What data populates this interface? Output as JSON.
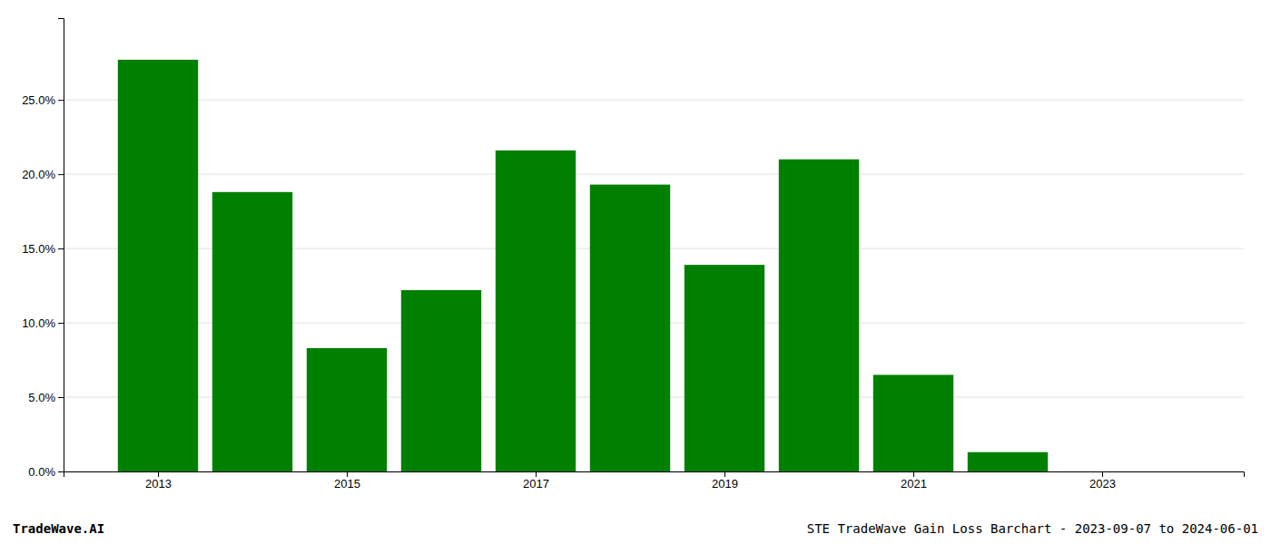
{
  "chart_data": {
    "type": "bar",
    "x": [
      2013,
      2014,
      2015,
      2016,
      2017,
      2018,
      2019,
      2020,
      2021,
      2022
    ],
    "values": [
      0.277,
      0.188,
      0.083,
      0.122,
      0.216,
      0.193,
      0.139,
      0.21,
      0.065,
      0.013
    ],
    "color": "#008000",
    "xlim": [
      2012.0,
      2024.5
    ],
    "xticks": [
      2013,
      2015,
      2017,
      2019,
      2021,
      2023
    ],
    "ylim": [
      0,
      0.305
    ],
    "yticks": [
      {
        "value": 0.0,
        "label": "0.0%"
      },
      {
        "value": 0.05,
        "label": "5.0%"
      },
      {
        "value": 0.1,
        "label": "10.0%"
      },
      {
        "value": 0.15,
        "label": "15.0%"
      },
      {
        "value": 0.2,
        "label": "20.0%"
      },
      {
        "value": 0.25,
        "label": "25.0%"
      }
    ],
    "grid": true,
    "annotations": [
      "TradeWave.AI",
      "STE TradeWave Gain Loss Barchart - 2023-09-07 to 2024-06-01"
    ]
  }
}
